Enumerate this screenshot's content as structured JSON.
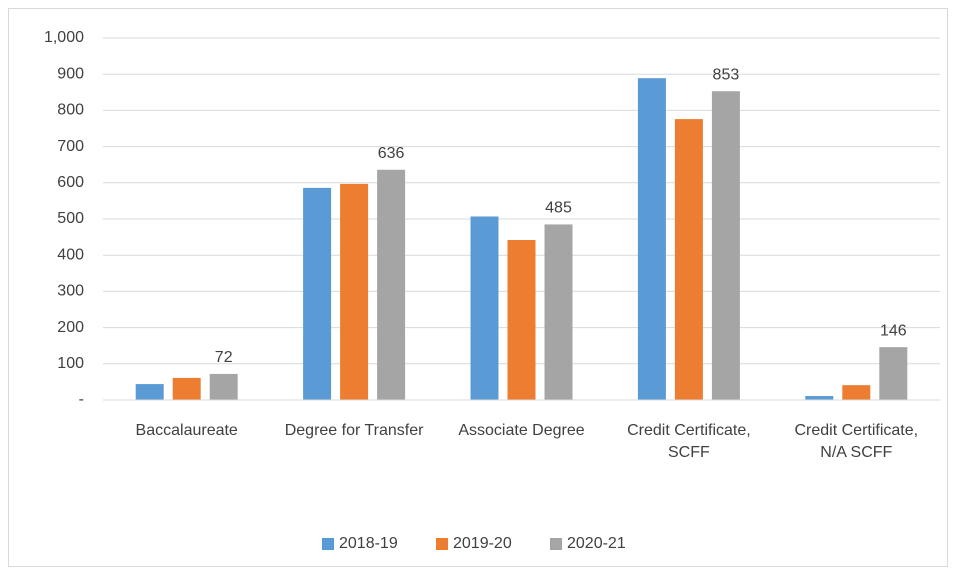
{
  "chart_data": {
    "type": "bar",
    "categories": [
      "Baccalaureate",
      "Degree for Transfer",
      "Associate Degree",
      "Credit Certificate, SCFF",
      "Credit Certificate, N/A SCFF"
    ],
    "series": [
      {
        "name": "2018-19",
        "color": "#5b9bd5",
        "values": [
          44,
          586,
          507,
          889,
          11
        ]
      },
      {
        "name": "2019-20",
        "color": "#ed7d31",
        "values": [
          61,
          597,
          442,
          776,
          41
        ]
      },
      {
        "name": "2020-21",
        "color": "#a5a5a5",
        "values": [
          72,
          636,
          485,
          853,
          146
        ],
        "data_labels": true
      }
    ],
    "ylim": [
      0,
      1000
    ],
    "yticks": [
      {
        "value": 0,
        "label": "-"
      },
      100,
      200,
      300,
      400,
      500,
      600,
      700,
      800,
      900,
      {
        "value": 1000,
        "label": "1,000"
      }
    ],
    "grid": true,
    "legend": "bottom"
  }
}
